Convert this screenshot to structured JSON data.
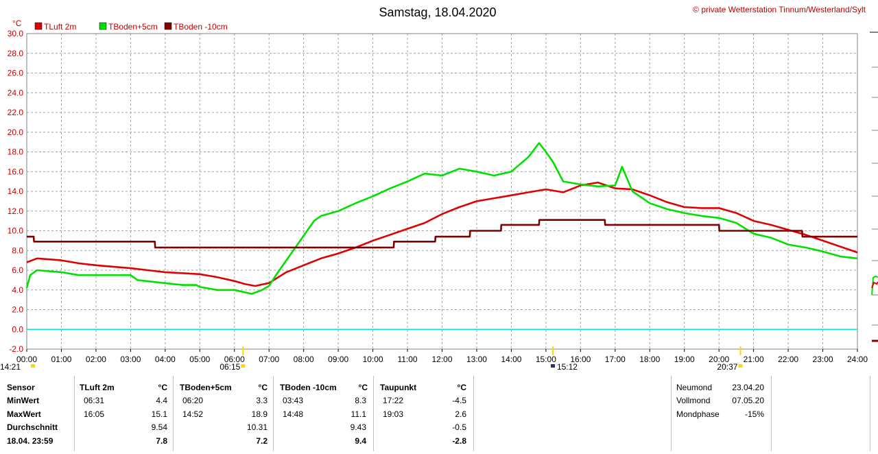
{
  "chart_data": {
    "type": "line",
    "title": "Samstag, 18.04.2020",
    "copyright": "© private Wetterstation Tinnum/Westerland/Sylt",
    "ylabel": "°C",
    "ylim": [
      -2,
      30
    ],
    "yticks": [
      "-2.0",
      "0.0",
      "2.0",
      "4.0",
      "6.0",
      "8.0",
      "10.0",
      "12.0",
      "14.0",
      "16.0",
      "18.0",
      "20.0",
      "22.0",
      "24.0",
      "26.0",
      "28.0",
      "30.0"
    ],
    "xticks": [
      "00:00",
      "01:00",
      "02:00",
      "03:00",
      "04:00",
      "05:00",
      "06:00",
      "07:00",
      "08:00",
      "09:00",
      "10:00",
      "11:00",
      "12:00",
      "13:00",
      "14:00",
      "15:00",
      "16:00",
      "17:00",
      "18:00",
      "19:00",
      "20:00",
      "21:00",
      "22:00",
      "23:00",
      "24:00"
    ],
    "xlim": [
      0,
      24
    ],
    "grid": true,
    "legend_position": "top-left",
    "zero_line_color": "#00e5e5",
    "sun_markers": [
      {
        "label": "06:15",
        "hour": 6.25
      },
      {
        "label": "15:12",
        "hour": 15.2
      },
      {
        "label": "20:37",
        "hour": 20.62
      }
    ],
    "left_label": "14:21",
    "series": [
      {
        "name": "TLuft 2m",
        "color": "#e00000",
        "x": [
          0,
          0.3,
          1,
          1.5,
          2,
          3,
          3.5,
          4,
          4.5,
          5,
          5.5,
          6,
          6.3,
          6.6,
          7,
          7.5,
          8,
          8.5,
          9,
          9.5,
          10,
          10.5,
          11,
          11.5,
          12,
          12.5,
          13,
          13.5,
          14,
          14.5,
          15,
          15.5,
          16,
          16.5,
          17,
          17.5,
          18,
          18.5,
          19,
          19.5,
          20,
          20.5,
          21,
          21.5,
          22,
          22.5,
          23,
          23.5,
          24
        ],
        "values": [
          6.8,
          7.2,
          7.0,
          6.7,
          6.5,
          6.2,
          6.0,
          5.8,
          5.7,
          5.6,
          5.3,
          4.9,
          4.6,
          4.4,
          4.7,
          5.8,
          6.5,
          7.2,
          7.7,
          8.3,
          9.0,
          9.6,
          10.2,
          10.8,
          11.7,
          12.4,
          13.0,
          13.3,
          13.6,
          13.9,
          14.2,
          13.9,
          14.6,
          14.9,
          14.3,
          14.2,
          13.6,
          12.9,
          12.4,
          12.3,
          12.3,
          11.8,
          11.0,
          10.6,
          10.1,
          9.6,
          9.0,
          8.4,
          7.8
        ]
      },
      {
        "name": "TBoden+5cm",
        "color": "#00e000",
        "x": [
          0,
          0.1,
          0.3,
          1,
          1.5,
          2,
          3,
          3.2,
          4.5,
          4.9,
          5,
          5.5,
          6,
          6.5,
          6.8,
          7,
          7.2,
          7.5,
          8,
          8.3,
          8.5,
          9,
          9.5,
          10,
          10.5,
          11,
          11.5,
          12,
          12.5,
          13,
          13.5,
          14,
          14.5,
          14.8,
          15,
          15.2,
          15.5,
          16,
          16.5,
          17,
          17.2,
          17.5,
          18,
          18.5,
          19,
          19.5,
          20,
          20.5,
          21,
          21.5,
          22,
          22.5,
          23,
          23.5,
          24
        ],
        "values": [
          4.2,
          5.5,
          6.0,
          5.8,
          5.5,
          5.5,
          5.5,
          5.0,
          4.5,
          4.5,
          4.3,
          4.0,
          4.0,
          3.6,
          4.0,
          4.4,
          5.5,
          7.0,
          9.5,
          11.0,
          11.5,
          12.0,
          12.8,
          13.5,
          14.3,
          15.0,
          15.8,
          15.6,
          16.3,
          16.0,
          15.6,
          16.0,
          17.5,
          18.9,
          18.0,
          17.0,
          15.0,
          14.7,
          14.5,
          14.6,
          16.5,
          14.0,
          12.8,
          12.2,
          11.8,
          11.5,
          11.3,
          10.8,
          9.7,
          9.3,
          8.6,
          8.3,
          7.9,
          7.4,
          7.2
        ]
      },
      {
        "name": "TBoden -10cm",
        "color": "#800000",
        "x": [
          0,
          0.2,
          0.21,
          3.7,
          3.71,
          10.6,
          10.61,
          11.8,
          11.81,
          12.8,
          12.81,
          13.7,
          13.71,
          14.8,
          14.81,
          16.7,
          16.71,
          20.0,
          20.01,
          22.4,
          22.41,
          24
        ],
        "values": [
          9.4,
          9.4,
          8.9,
          8.9,
          8.3,
          8.3,
          8.9,
          8.9,
          9.4,
          9.4,
          10.0,
          10.0,
          10.6,
          10.6,
          11.1,
          11.1,
          10.6,
          10.6,
          10.0,
          10.0,
          9.4,
          9.4
        ]
      }
    ]
  },
  "stats": {
    "headers": {
      "sensor": "Sensor",
      "tluft": "TLuft 2m",
      "tboden5": "TBoden+5cm",
      "tboden10": "TBoden -10cm",
      "taupunkt": "Taupunkt",
      "unit": "°C"
    },
    "rows": [
      {
        "label": "MinWert",
        "tluft_time": "06:31",
        "tluft_val": "4.4",
        "tb5_time": "06:20",
        "tb5_val": "3.3",
        "tb10_time": "03:43",
        "tb10_val": "8.3",
        "tau_time": "17:22",
        "tau_val": "-4.5"
      },
      {
        "label": "MaxWert",
        "tluft_time": "16:05",
        "tluft_val": "15.1",
        "tb5_time": "14:52",
        "tb5_val": "18.9",
        "tb10_time": "14:48",
        "tb10_val": "11.1",
        "tau_time": "19:03",
        "tau_val": "2.6"
      },
      {
        "label": "Durchschnitt",
        "tluft_time": "",
        "tluft_val": "9.54",
        "tb5_time": "",
        "tb5_val": "10.31",
        "tb10_time": "",
        "tb10_val": "9.43",
        "tau_time": "",
        "tau_val": "-0.5"
      },
      {
        "label": "18.04. 23:59",
        "tluft_time": "",
        "tluft_val": "7.8",
        "tb5_time": "",
        "tb5_val": "7.2",
        "tb10_time": "",
        "tb10_val": "9.4",
        "tau_time": "",
        "tau_val": "-2.8"
      }
    ],
    "moon": [
      {
        "label": "Neumond",
        "value": "23.04.20"
      },
      {
        "label": "Vollmond",
        "value": "07.05.20"
      },
      {
        "label": "Mondphase",
        "value": "-15%"
      }
    ]
  }
}
